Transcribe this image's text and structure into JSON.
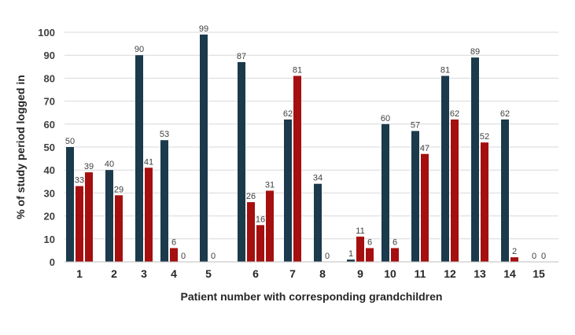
{
  "chart_data": {
    "type": "bar",
    "title": "",
    "xlabel": "Patient number with corresponding grandchildren",
    "ylabel": "% of study period logged in",
    "ylim": [
      0,
      100
    ],
    "yticks": [
      "0",
      "10",
      "20",
      "30",
      "40",
      "50",
      "60",
      "70",
      "80",
      "90",
      "100"
    ],
    "grid": true,
    "colors": {
      "patient": "#1b3a4b",
      "grandchild": "#a50f0f"
    },
    "groups": [
      {
        "label": "1",
        "bars": [
          {
            "role": "patient",
            "value": 50,
            "label": "50"
          },
          {
            "role": "grandchild",
            "value": 33,
            "label": "33"
          },
          {
            "role": "grandchild",
            "value": 39,
            "label": "39"
          }
        ]
      },
      {
        "label": "2",
        "bars": [
          {
            "role": "patient",
            "value": 40,
            "label": "40"
          },
          {
            "role": "grandchild",
            "value": 29,
            "label": "29"
          }
        ]
      },
      {
        "label": "3",
        "bars": [
          {
            "role": "patient",
            "value": 90,
            "label": "90"
          },
          {
            "role": "grandchild",
            "value": 41,
            "label": "41"
          }
        ]
      },
      {
        "label": "4",
        "bars": [
          {
            "role": "patient",
            "value": 53,
            "label": "53"
          },
          {
            "role": "grandchild",
            "value": 6,
            "label": "6"
          },
          {
            "role": "grandchild",
            "value": 0,
            "label": "0"
          }
        ]
      },
      {
        "label": "5",
        "bars": [
          {
            "role": "patient",
            "value": 99,
            "label": "99"
          },
          {
            "role": "grandchild",
            "value": 0,
            "label": "0"
          }
        ]
      },
      {
        "label": "6",
        "bars": [
          {
            "role": "patient",
            "value": 87,
            "label": "87"
          },
          {
            "role": "grandchild",
            "value": 26,
            "label": "26"
          },
          {
            "role": "grandchild",
            "value": 16,
            "label": "16"
          },
          {
            "role": "grandchild",
            "value": 31,
            "label": "31"
          }
        ]
      },
      {
        "label": "7",
        "bars": [
          {
            "role": "patient",
            "value": 62,
            "label": "62"
          },
          {
            "role": "grandchild",
            "value": 81,
            "label": "81"
          }
        ]
      },
      {
        "label": "8",
        "bars": [
          {
            "role": "patient",
            "value": 34,
            "label": "34"
          },
          {
            "role": "grandchild",
            "value": 0,
            "label": "0"
          }
        ]
      },
      {
        "label": "9",
        "bars": [
          {
            "role": "patient",
            "value": 1,
            "label": "1"
          },
          {
            "role": "grandchild",
            "value": 11,
            "label": "11"
          },
          {
            "role": "grandchild",
            "value": 6,
            "label": "6"
          }
        ]
      },
      {
        "label": "10",
        "bars": [
          {
            "role": "patient",
            "value": 60,
            "label": "60"
          },
          {
            "role": "grandchild",
            "value": 6,
            "label": "6"
          }
        ]
      },
      {
        "label": "11",
        "bars": [
          {
            "role": "patient",
            "value": 57,
            "label": "57"
          },
          {
            "role": "grandchild",
            "value": 47,
            "label": "47"
          }
        ]
      },
      {
        "label": "12",
        "bars": [
          {
            "role": "patient",
            "value": 81,
            "label": "81"
          },
          {
            "role": "grandchild",
            "value": 62,
            "label": "62"
          }
        ]
      },
      {
        "label": "13",
        "bars": [
          {
            "role": "patient",
            "value": 89,
            "label": "89"
          },
          {
            "role": "grandchild",
            "value": 52,
            "label": "52"
          }
        ]
      },
      {
        "label": "14",
        "bars": [
          {
            "role": "patient",
            "value": 62,
            "label": "62"
          },
          {
            "role": "grandchild",
            "value": 2,
            "label": "2"
          }
        ]
      },
      {
        "label": "15",
        "bars": [
          {
            "role": "patient",
            "value": 0,
            "label": "0"
          },
          {
            "role": "grandchild",
            "value": 0,
            "label": "0"
          }
        ]
      }
    ]
  }
}
